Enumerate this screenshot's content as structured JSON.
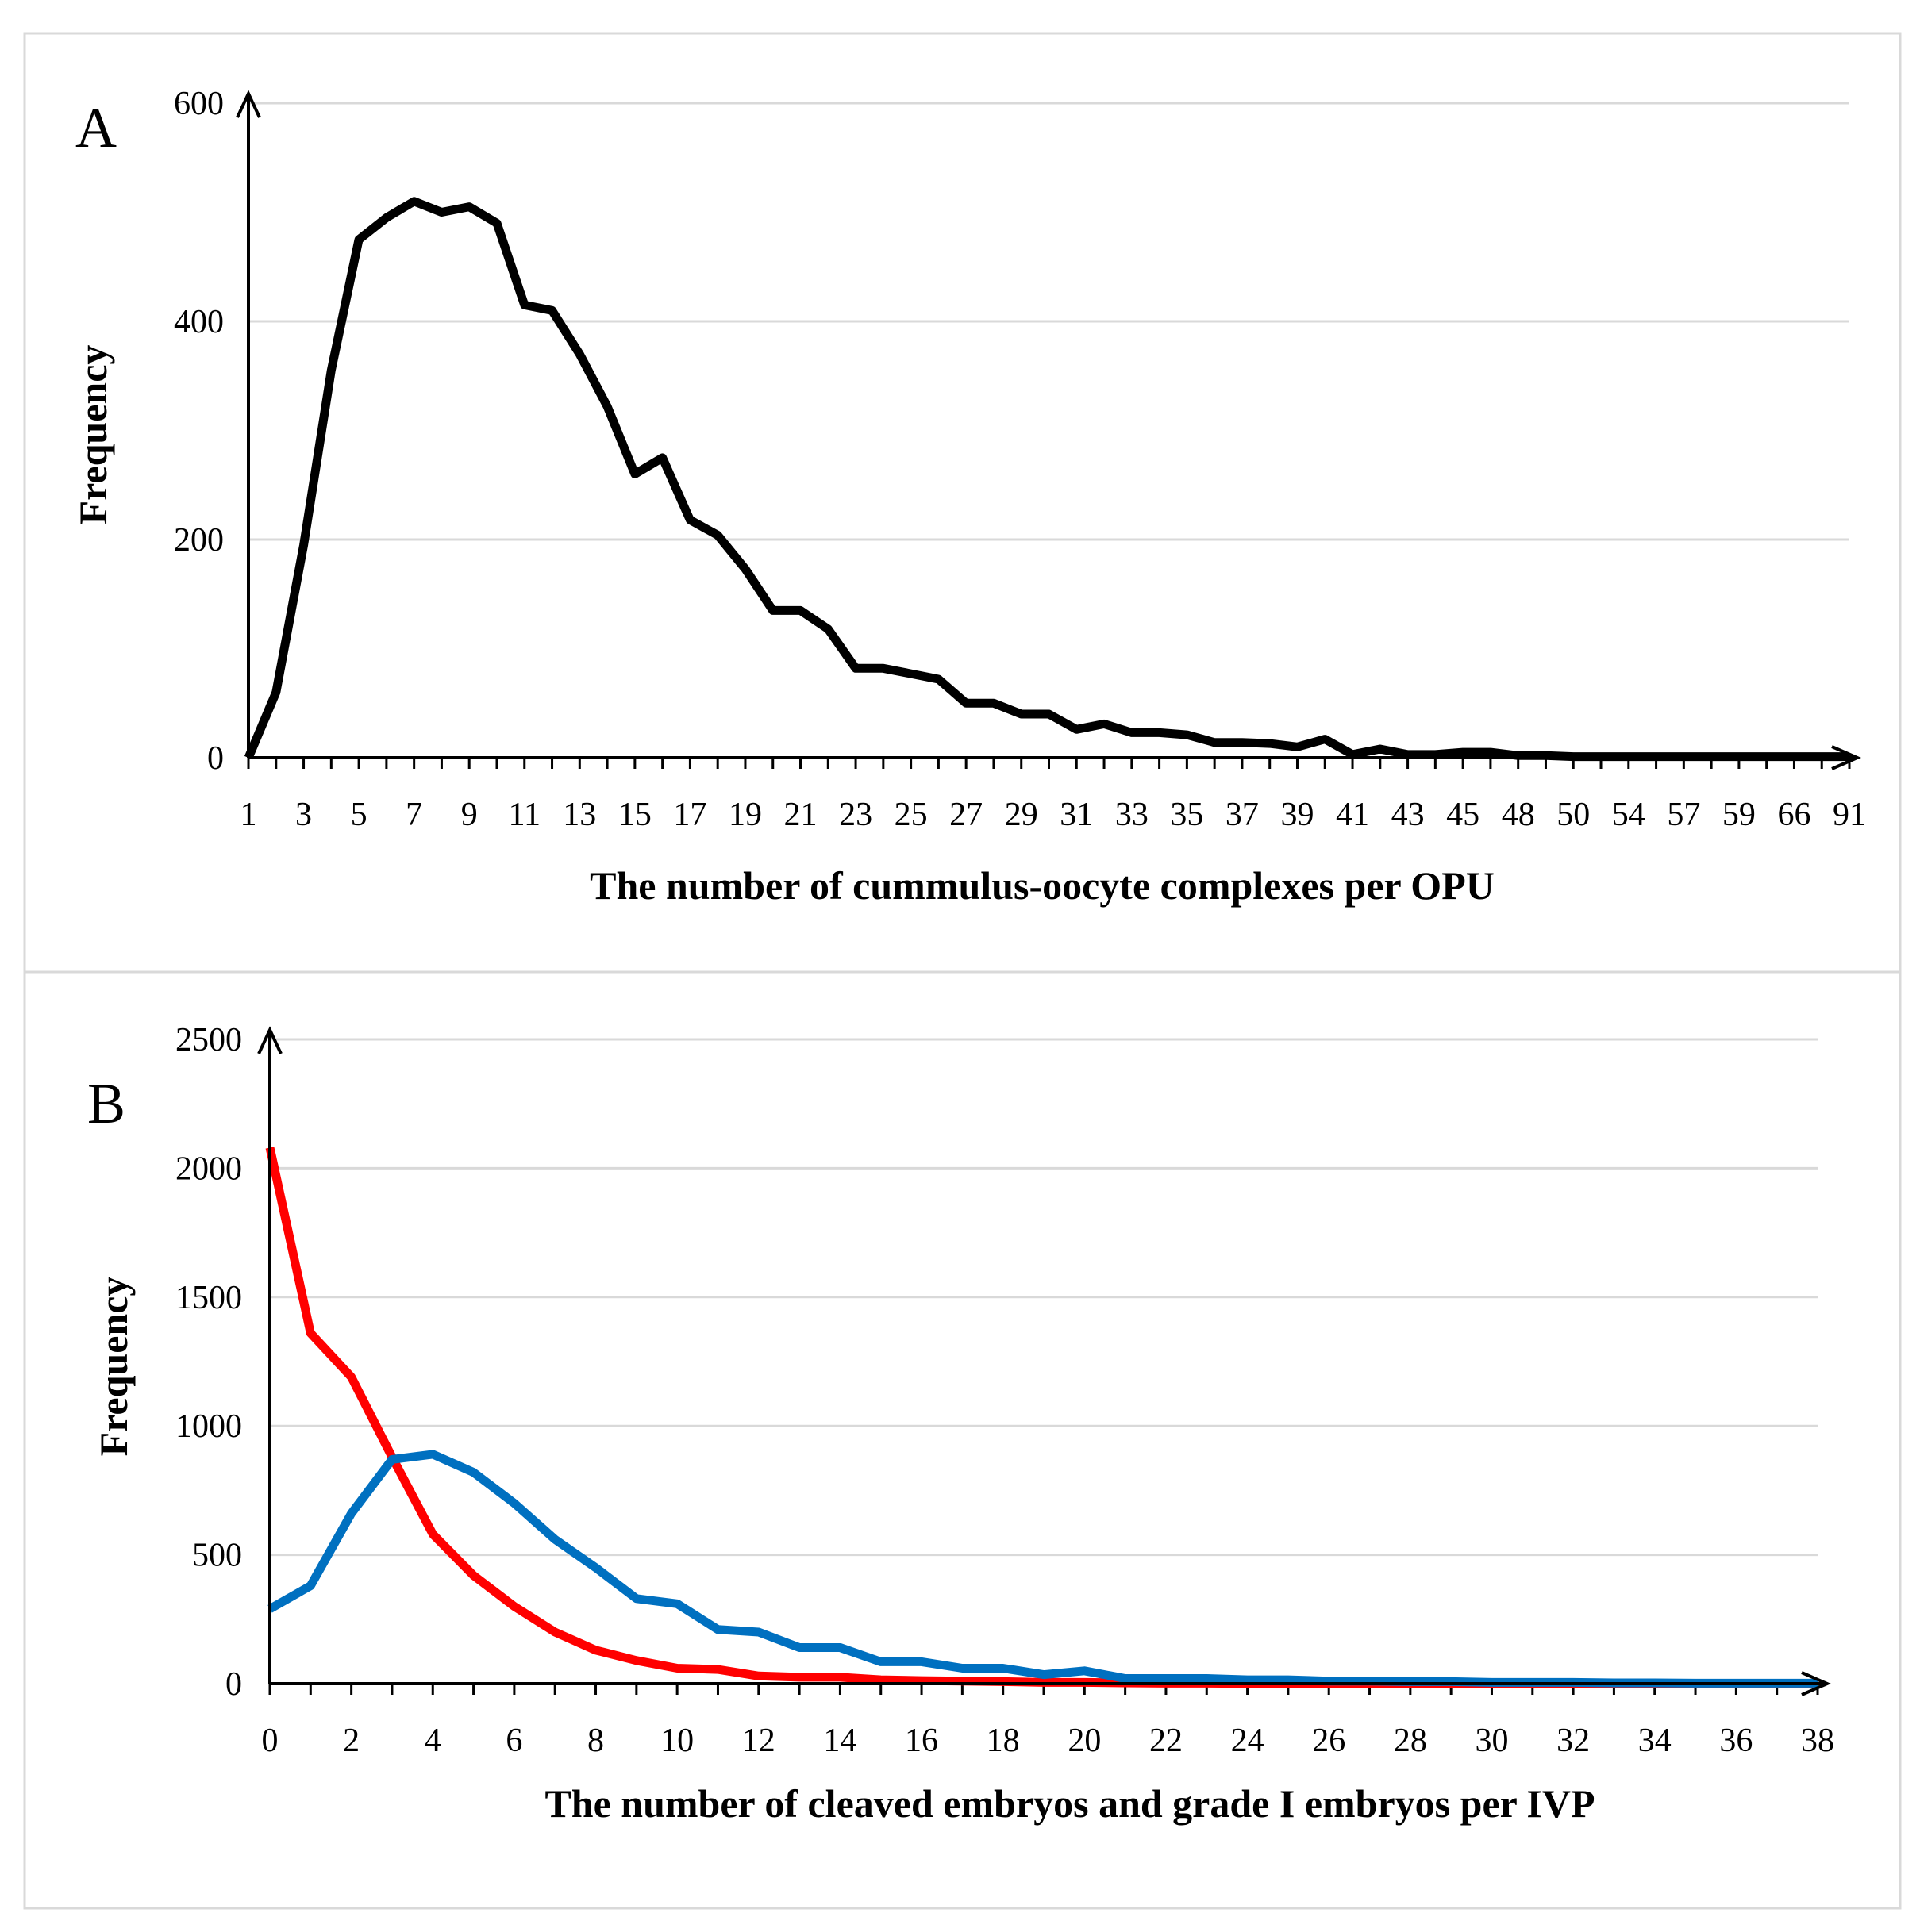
{
  "chart_data": [
    {
      "type": "line",
      "panel_label": "A",
      "xlabel": "The number of cummulus-oocyte complexes per OPU",
      "ylabel": "Frequency",
      "ylim": [
        0,
        600
      ],
      "yticks": [
        "0",
        "200",
        "400",
        "600"
      ],
      "grid": true,
      "xtick_labels": [
        "1",
        "3",
        "5",
        "7",
        "9",
        "11",
        "13",
        "15",
        "17",
        "19",
        "21",
        "23",
        "25",
        "27",
        "29",
        "31",
        "33",
        "35",
        "37",
        "39",
        "41",
        "43",
        "45",
        "48",
        "50",
        "54",
        "57",
        "59",
        "66",
        "91"
      ],
      "x": [
        "1",
        "2",
        "3",
        "4",
        "5",
        "6",
        "7",
        "8",
        "9",
        "10",
        "11",
        "12",
        "13",
        "14",
        "15",
        "16",
        "17",
        "18",
        "19",
        "20",
        "21",
        "22",
        "23",
        "24",
        "25",
        "26",
        "27",
        "28",
        "29",
        "30",
        "31",
        "32",
        "33",
        "34",
        "35",
        "36",
        "37",
        "38",
        "39",
        "40",
        "41",
        "42",
        "43",
        "44",
        "45",
        "46",
        "48",
        "49",
        "50",
        "51",
        "54",
        "55",
        "57",
        "58",
        "59",
        "65",
        "66",
        "70",
        "91"
      ],
      "series": [
        {
          "color": "#000000",
          "values": [
            0,
            60,
            195,
            355,
            475,
            495,
            510,
            500,
            505,
            490,
            415,
            410,
            370,
            322,
            260,
            275,
            218,
            204,
            173,
            135,
            135,
            118,
            82,
            82,
            77,
            72,
            50,
            50,
            40,
            40,
            26,
            31,
            23,
            23,
            21,
            14,
            14,
            13,
            10,
            17,
            3,
            8,
            3,
            3,
            5,
            5,
            2,
            2,
            1,
            1,
            1,
            1,
            1,
            1,
            1,
            1,
            1,
            1,
            1
          ]
        }
      ]
    },
    {
      "type": "line",
      "panel_label": "B",
      "xlabel": "The number of cleaved embryos and grade I embryos per IVP",
      "ylabel": "Frequency",
      "ylim": [
        0,
        2500
      ],
      "yticks": [
        "0",
        "500",
        "1000",
        "1500",
        "2000",
        "2500"
      ],
      "grid": true,
      "xtick_labels": [
        "0",
        "2",
        "4",
        "6",
        "8",
        "10",
        "12",
        "14",
        "16",
        "18",
        "20",
        "22",
        "24",
        "26",
        "28",
        "30",
        "32",
        "34",
        "36",
        "38"
      ],
      "x": [
        0,
        1,
        2,
        3,
        4,
        5,
        6,
        7,
        8,
        9,
        10,
        11,
        12,
        13,
        14,
        15,
        16,
        17,
        18,
        19,
        20,
        21,
        22,
        23,
        24,
        25,
        26,
        27,
        28,
        29,
        30,
        31,
        32,
        33,
        34,
        35,
        36,
        37,
        38
      ],
      "series": [
        {
          "color": "#ff0000",
          "values": [
            2080,
            1360,
            1190,
            880,
            580,
            420,
            300,
            200,
            130,
            90,
            60,
            55,
            30,
            25,
            25,
            15,
            12,
            10,
            8,
            5,
            5,
            3,
            2,
            2,
            1,
            1,
            1,
            1,
            0,
            0,
            0,
            0,
            0,
            0,
            0,
            0,
            0,
            0,
            0
          ]
        },
        {
          "color": "#0070c0",
          "values": [
            290,
            380,
            660,
            870,
            890,
            820,
            700,
            560,
            450,
            330,
            310,
            210,
            200,
            140,
            140,
            85,
            85,
            60,
            60,
            35,
            50,
            20,
            20,
            20,
            15,
            15,
            10,
            10,
            8,
            8,
            5,
            5,
            5,
            3,
            3,
            2,
            2,
            2,
            2
          ]
        }
      ]
    }
  ]
}
